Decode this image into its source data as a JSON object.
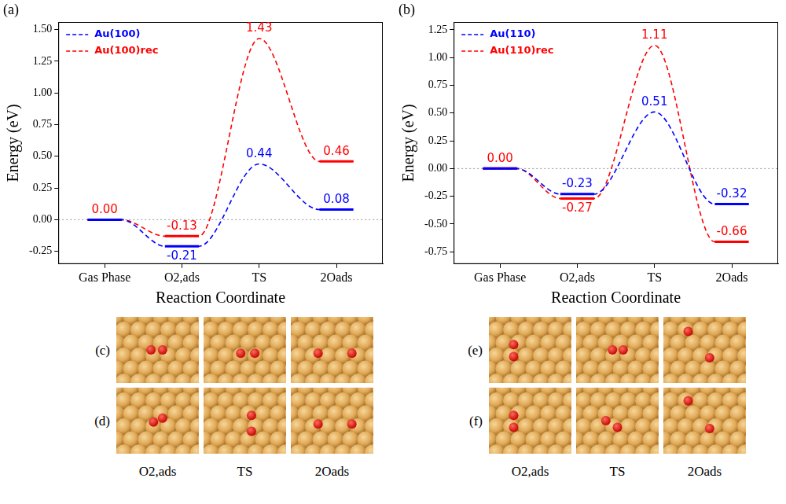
{
  "chart_data": [
    {
      "type": "line",
      "label": "(a)",
      "xlabel": "Reaction Coordinate",
      "ylabel": "Energy (eV)",
      "categories": [
        "Gas Phase",
        "O2,ads",
        "TS",
        "2Oads"
      ],
      "series": [
        {
          "name": "Au(100)",
          "color": "#0000ff",
          "line_style": "dashed",
          "values": [
            0,
            -0.21,
            0.44,
            0.08
          ],
          "value_labels": [
            null,
            "-0.21",
            "0.44",
            "0.08"
          ]
        },
        {
          "name": "Au(100)rec",
          "color": "#ff0000",
          "line_style": "dashed",
          "values": [
            0,
            -0.13,
            1.43,
            0.46
          ],
          "value_labels": [
            "0.00",
            "-0.13",
            "1.43",
            "0.46"
          ]
        }
      ],
      "ylim": [
        -0.35,
        1.56
      ],
      "yticks": [
        -0.25,
        {
          "value": 0,
          "label": "0.00"
        },
        0.25,
        {
          "value": 0.5,
          "label": "0.50"
        },
        0.75,
        {
          "value": 1,
          "label": "1.00"
        },
        1.25,
        {
          "value": 1.5,
          "label": "1.50"
        }
      ],
      "legend": "upper left",
      "data_labels": true
    },
    {
      "type": "line",
      "label": "(b)",
      "xlabel": "Reaction Coordinate",
      "ylabel": "Energy (eV)",
      "categories": [
        "Gas Phase",
        "O2,ads",
        "TS",
        "2Oads"
      ],
      "series": [
        {
          "name": "Au(110)",
          "color": "#0000ff",
          "line_style": "dashed",
          "values": [
            0,
            -0.23,
            0.51,
            -0.32
          ],
          "value_labels": [
            null,
            "-0.23",
            "0.51",
            "-0.32"
          ]
        },
        {
          "name": "Au(110)rec",
          "color": "#ff0000",
          "line_style": "dashed",
          "values": [
            0,
            -0.27,
            1.11,
            -0.66
          ],
          "value_labels": [
            "0.00",
            "-0.27",
            "1.11",
            "-0.66"
          ]
        }
      ],
      "ylim": [
        -0.86,
        1.32
      ],
      "yticks": [
        -0.75,
        {
          "value": -0.5,
          "label": "-0.50"
        },
        -0.25,
        {
          "value": 0,
          "label": "0.00"
        },
        0.25,
        {
          "value": 0.5,
          "label": "0.50"
        },
        0.75,
        {
          "value": 1,
          "label": "1.00"
        },
        1.25
      ],
      "legend": "upper left",
      "data_labels": true
    }
  ],
  "structures": {
    "letters": [
      "(c)",
      "(d)",
      "(e)",
      "(f)"
    ],
    "captions": [
      "O2,ads",
      "TS",
      "2Oads"
    ]
  }
}
